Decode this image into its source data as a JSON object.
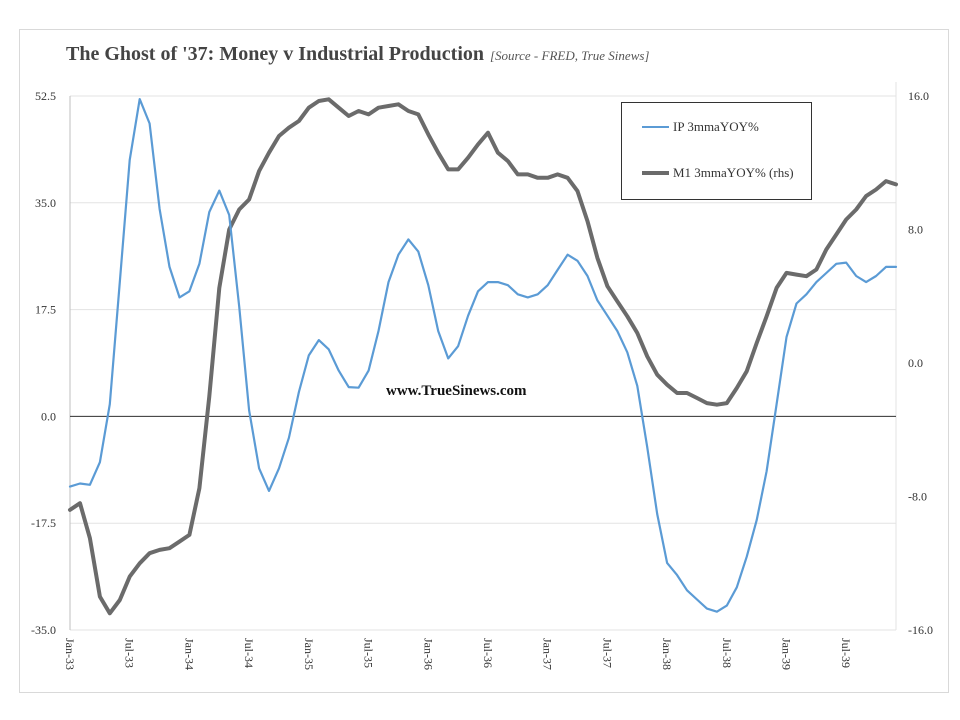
{
  "header": {
    "title": "The Ghost of '37: Money v Industrial Production",
    "subtitle": "[Source -  FRED, True Sinews]"
  },
  "watermark": "www.TrueSinews.com",
  "legend": {
    "ip": "IP 3mmaYOY%",
    "m1": "M1 3mmaYOY% (rhs)"
  },
  "colors": {
    "ip": "#5b9bd5",
    "m1": "#6b6b6b",
    "negative_ticks": "#c00000"
  },
  "chart_data": {
    "type": "line",
    "title": "The Ghost of '37: Money v Industrial Production",
    "x_tick_labels": [
      "Jan-33",
      "Jul-33",
      "Jan-34",
      "Jul-34",
      "Jan-35",
      "Jul-35",
      "Jan-36",
      "Jul-36",
      "Jan-37",
      "Jul-37",
      "Jan-38",
      "Jul-38",
      "Jan-39",
      "Jul-39"
    ],
    "y_left": {
      "ylim": [
        -35.0,
        52.5
      ],
      "ticks": [
        "-35.0",
        "-17.5",
        "0.0",
        "17.5",
        "35.0",
        "52.5"
      ]
    },
    "y_right": {
      "ylim": [
        -16.0,
        16.0
      ],
      "ticks": [
        "-16.0",
        "-8.0",
        "0.0",
        "8.0",
        "16.0"
      ]
    },
    "grid": true,
    "legend_position": "top-right",
    "series": [
      {
        "name": "IP 3mmaYOY%",
        "axis": "left",
        "values": [
          -11.5,
          -11,
          -11.2,
          -7.5,
          2,
          22,
          42,
          52,
          48,
          34,
          24.5,
          19.5,
          20.5,
          25,
          33.5,
          37,
          33,
          18,
          1,
          -8.5,
          -12.2,
          -8.5,
          -3.5,
          4,
          10,
          12.5,
          11,
          7.5,
          4.8,
          4.7,
          7.5,
          14,
          22,
          26.5,
          29,
          27,
          21.5,
          14,
          9.5,
          11.5,
          16.5,
          20.5,
          22,
          22,
          21.5,
          20,
          19.5,
          20,
          21.5,
          24,
          26.5,
          25.5,
          23,
          19,
          16.5,
          14,
          10.5,
          5,
          -5,
          -16,
          -24,
          -26,
          -28.5,
          -30,
          -31.5,
          -32,
          -31,
          -28,
          -23,
          -17,
          -9,
          2,
          13,
          18.5,
          20,
          22,
          23.5,
          25,
          25.2,
          23,
          22,
          23,
          24.5,
          24.5
        ]
      },
      {
        "name": "M1 3mmaYOY% (rhs)",
        "axis": "right",
        "values": [
          -8.8,
          -8.4,
          -10.5,
          -14,
          -15,
          -14.2,
          -12.8,
          -12,
          -11.4,
          -11.2,
          -11.1,
          -10.7,
          -10.3,
          -7.5,
          -2,
          4.5,
          8,
          9.2,
          9.8,
          11.5,
          12.6,
          13.6,
          14.1,
          14.5,
          15.3,
          15.7,
          15.8,
          15.3,
          14.8,
          15.1,
          14.9,
          15.3,
          15.4,
          15.5,
          15.1,
          14.9,
          13.7,
          12.6,
          11.6,
          11.6,
          12.3,
          13.1,
          13.8,
          12.6,
          12.1,
          11.3,
          11.3,
          11.1,
          11.1,
          11.3,
          11.1,
          10.3,
          8.5,
          6.3,
          4.6,
          3.7,
          2.8,
          1.8,
          0.4,
          -0.7,
          -1.3,
          -1.8,
          -1.8,
          -2.1,
          -2.4,
          -2.5,
          -2.4,
          -1.5,
          -0.5,
          1.2,
          2.8,
          4.5,
          5.4,
          5.3,
          5.2,
          5.6,
          6.8,
          7.7,
          8.6,
          9.2,
          10,
          10.4,
          10.9,
          10.7
        ]
      }
    ]
  }
}
